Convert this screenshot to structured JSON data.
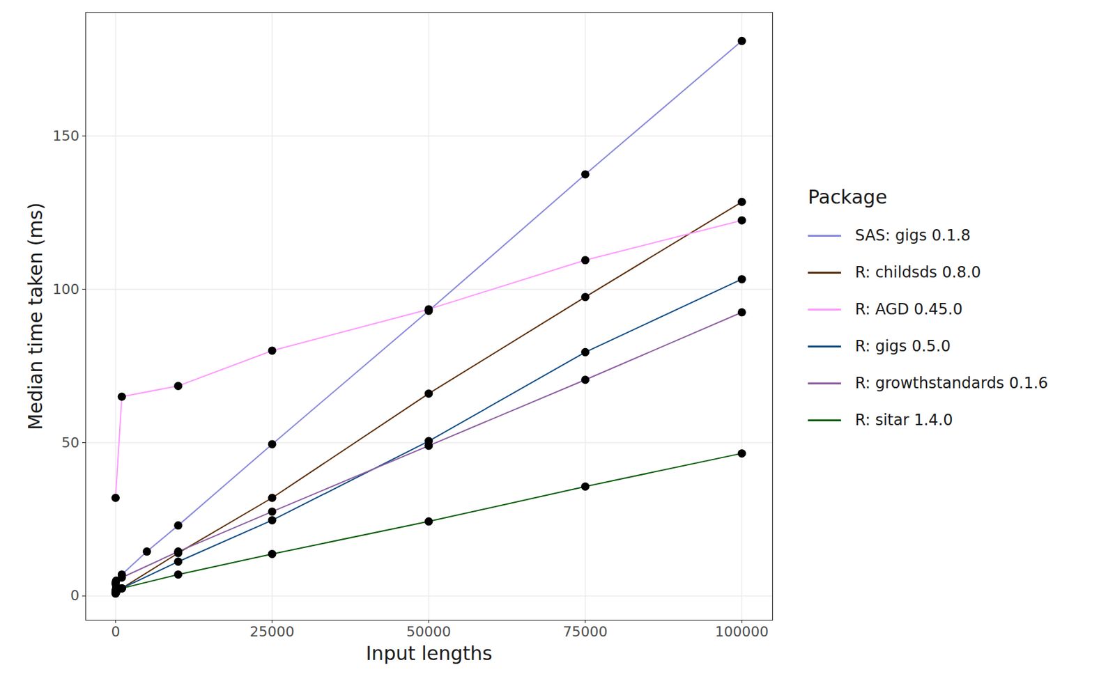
{
  "chart_data": {
    "type": "line",
    "x_label": "Input lengths",
    "y_label": "Median time taken (ms)",
    "legend_title": "Package",
    "legend": "right",
    "grid": true,
    "xlim": [
      -4770,
      104900
    ],
    "ylim": [
      -7.9,
      190.3
    ],
    "xticks": [
      0,
      25000,
      50000,
      75000,
      100000
    ],
    "yticks": [
      0,
      50,
      100,
      150
    ],
    "series": [
      {
        "name": "SAS: gigs 0.1.8",
        "color": "#8888dd",
        "marker": "circle",
        "x": [
          1,
          10,
          100,
          1000,
          5000,
          10000,
          25000,
          50000,
          75000,
          100000
        ],
        "values": [
          1,
          2,
          3,
          7,
          14.5,
          23,
          49.5,
          93,
          137.5,
          181
        ]
      },
      {
        "name": "R: childsds 0.8.0",
        "color": "#5c2e0a",
        "marker": "circle",
        "x": [
          1,
          10,
          100,
          1000,
          10000,
          25000,
          50000,
          75000,
          100000
        ],
        "values": [
          0.8,
          1,
          1.2,
          2.5,
          14,
          32,
          66,
          97.5,
          128.5
        ]
      },
      {
        "name": "R: AGD 0.45.0",
        "color": "#ff99ff",
        "marker": "circle",
        "x": [
          1,
          1000,
          10000,
          25000,
          50000,
          75000,
          100000
        ],
        "values": [
          32,
          65,
          68.5,
          80,
          93.5,
          109.5,
          122.5
        ]
      },
      {
        "name": "R: gigs 0.5.0",
        "color": "#104d85",
        "marker": "circle",
        "x": [
          1,
          10,
          100,
          1000,
          10000,
          25000,
          50000,
          75000,
          100000
        ],
        "values": [
          1,
          1.2,
          1.5,
          2.5,
          11.2,
          24.7,
          50.5,
          79.5,
          103.3
        ]
      },
      {
        "name": "R: growthstandards 0.1.6",
        "color": "#8b5ea0",
        "marker": "circle",
        "x": [
          1,
          10,
          100,
          1000,
          10000,
          25000,
          50000,
          75000,
          100000
        ],
        "values": [
          4,
          4.5,
          5,
          6,
          14.5,
          27.5,
          49,
          70.5,
          92.5
        ]
      },
      {
        "name": "R: sitar 1.4.0",
        "color": "#0a5c0a",
        "marker": "circle",
        "x": [
          1,
          10,
          100,
          1000,
          10000,
          25000,
          50000,
          75000,
          100000
        ],
        "values": [
          1.5,
          1.6,
          1.8,
          2.5,
          7,
          13.7,
          24.3,
          35.7,
          46.5
        ]
      }
    ]
  }
}
